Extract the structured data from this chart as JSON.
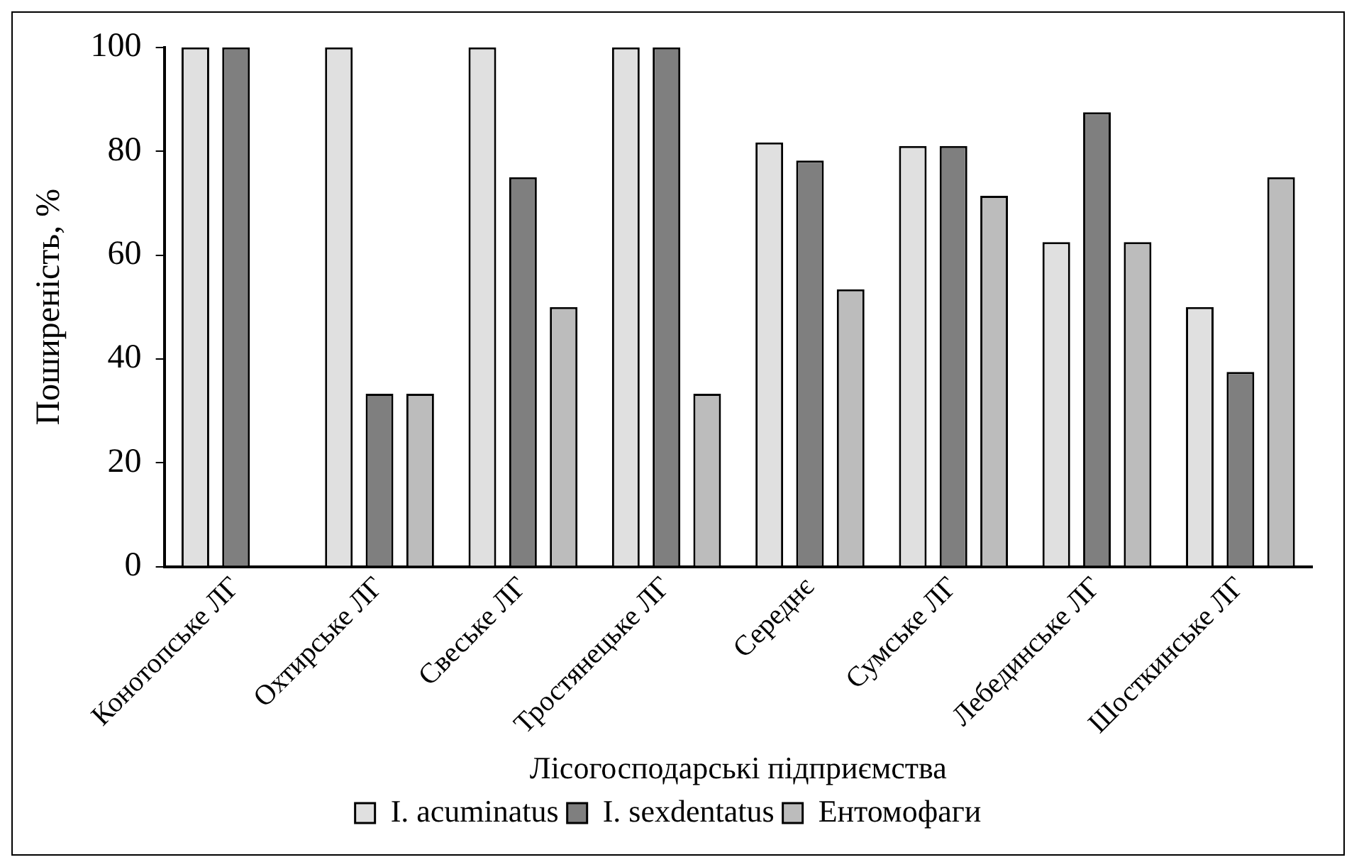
{
  "chart_data": {
    "type": "bar",
    "xlabel": "Лісогосподарські підприємства",
    "ylabel": "Поширеність, %",
    "categories": [
      "Конотопське ЛГ",
      "Охтирське ЛГ",
      "Свеське ЛГ",
      "Тростянецьке ЛГ",
      "Середнє",
      "Сумське ЛГ",
      "Лебединське ЛГ",
      "Шосткинське ЛГ"
    ],
    "series": [
      {
        "name": "I. acuminatus",
        "color": "#e0e0e0",
        "values": [
          100,
          100,
          100,
          100,
          81.7,
          81,
          62.5,
          50
        ]
      },
      {
        "name": "I. sexdentatus",
        "color": "#7f7f7f",
        "values": [
          100,
          33.3,
          75,
          100,
          78.2,
          81,
          87.5,
          37.5
        ]
      },
      {
        "name": "Ентомофаги",
        "color": "#bcbcbc",
        "values": [
          0,
          33.3,
          50,
          33.3,
          53.4,
          71.4,
          62.5,
          75
        ]
      }
    ],
    "ylim": [
      0,
      100
    ],
    "yticks": [
      0,
      20,
      40,
      60,
      80,
      100
    ],
    "grid": false,
    "legend": "bottom"
  }
}
